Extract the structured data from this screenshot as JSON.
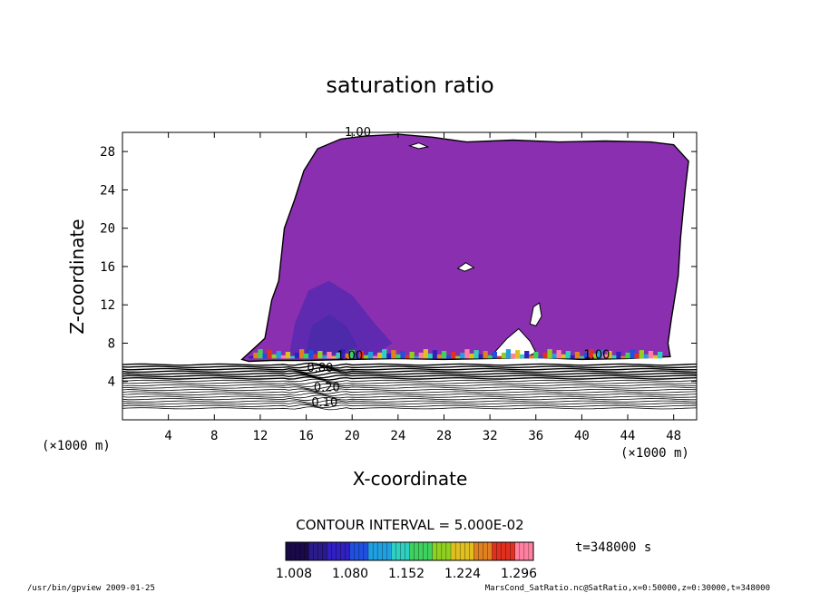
{
  "chart_data": {
    "type": "contour",
    "title": "saturation ratio",
    "xlabel": "X-coordinate",
    "ylabel": "Z-coordinate",
    "x_unit_left": "(×1000 m)",
    "x_unit_right": "(×1000 m)",
    "xlim": [
      0,
      50
    ],
    "ylim": [
      0,
      30
    ],
    "x_ticks": [
      4,
      8,
      12,
      16,
      20,
      24,
      28,
      32,
      36,
      40,
      44,
      48
    ],
    "y_ticks": [
      4,
      8,
      12,
      16,
      20,
      24,
      28
    ],
    "contour_interval": "CONTOUR INTERVAL = 5.000E-02",
    "contour_labels": [
      {
        "text": "1.00",
        "x": 20.5,
        "y": 29.6
      },
      {
        "text": "1.00",
        "x": 19.8,
        "y": 6.3
      },
      {
        "text": "1.00",
        "x": 41.3,
        "y": 6.4
      },
      {
        "text": "0.80",
        "x": 17.2,
        "y": 5.0
      },
      {
        "text": "0.20",
        "x": 17.8,
        "y": 3.0
      },
      {
        "text": "0.10",
        "x": 17.6,
        "y": 1.4
      }
    ],
    "colorbar": {
      "tick_labels": [
        "1.008",
        "1.080",
        "1.152",
        "1.224",
        "1.296"
      ],
      "colors": [
        "#1a0a4a",
        "#2a1a8a",
        "#3020c0",
        "#2050e0",
        "#20a0e0",
        "#30d0c0",
        "#40d060",
        "#90d020",
        "#e0c020",
        "#e08020",
        "#e03020",
        "#ff80a0"
      ]
    },
    "time_label": "t=348000 s",
    "colors": {
      "fill_main": "#8a2fb0",
      "fill_dark": "#5a2ab0",
      "fill_deep": "#4a2aa8"
    }
  },
  "footer": {
    "left": "/usr/bin/gpview   2009-01-25",
    "right": "MarsCond_SatRatio.nc@SatRatio,x=0:50000,z=0:30000,t=348000"
  }
}
